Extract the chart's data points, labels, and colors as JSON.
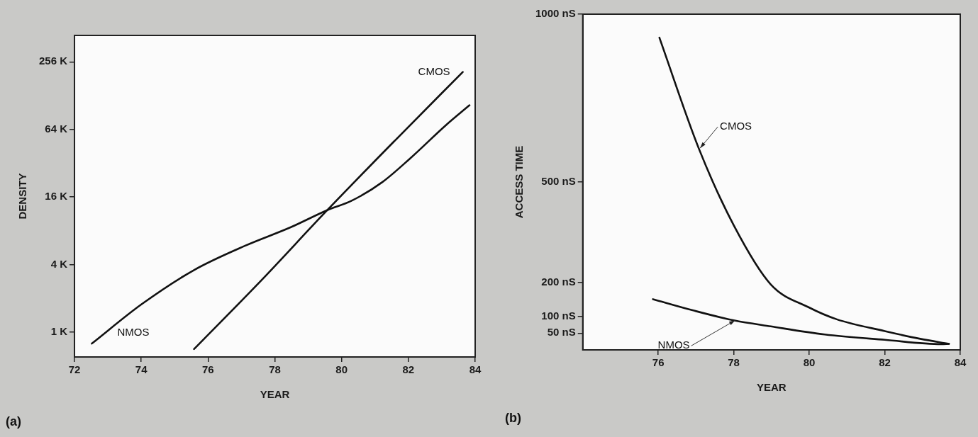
{
  "chart_data": [
    {
      "type": "line",
      "xlabel": "YEAR",
      "ylabel": "DENSITY",
      "log": "y",
      "xlim": [
        72,
        84
      ],
      "xticks": [
        72,
        74,
        76,
        78,
        80,
        82,
        84
      ],
      "ylim": [
        0.6,
        440
      ],
      "yticks": [
        {
          "value": 1,
          "label": "1 K"
        },
        {
          "value": 4,
          "label": "4 K"
        },
        {
          "value": 16,
          "label": "16 K"
        },
        {
          "value": 64,
          "label": "64 K"
        },
        {
          "value": 256,
          "label": "256 K"
        }
      ],
      "grid": false,
      "legend": false,
      "marker": "none",
      "line_style": "solid",
      "annotations": [
        "(a)"
      ],
      "series": [
        {
          "name": "CMOS",
          "color": "#111111",
          "x": [
            75.58,
            77.6,
            79.57,
            81.6,
            83.63
          ],
          "values": [
            0.705,
            2.9,
            12.2,
            51,
            208
          ]
        },
        {
          "name": "NMOS",
          "color": "#111111",
          "x": [
            72.52,
            74.01,
            75.58,
            77.1,
            78.48,
            79.57,
            80.3,
            81.22,
            82.04,
            83.13,
            83.83
          ],
          "values": [
            0.79,
            1.77,
            3.57,
            5.86,
            8.6,
            12.2,
            14.8,
            21.7,
            35,
            70,
            105
          ]
        }
      ]
    },
    {
      "type": "line",
      "xlabel": "YEAR",
      "ylabel": "ACCESS TIME",
      "xlim": [
        74,
        84
      ],
      "xticks": [
        76,
        78,
        80,
        82,
        84
      ],
      "ylim": [
        0,
        1000
      ],
      "yticks": [
        {
          "value": 50,
          "label": "50 nS"
        },
        {
          "value": 100,
          "label": "100 nS"
        },
        {
          "value": 200,
          "label": "200 nS"
        },
        {
          "value": 500,
          "label": "500 nS"
        },
        {
          "value": 1000,
          "label": "1000 nS"
        }
      ],
      "grid": false,
      "legend": false,
      "marker": "none",
      "line_style": "solid",
      "annotations": [
        "(b)"
      ],
      "series": [
        {
          "name": "CMOS",
          "color": "#111111",
          "x": [
            76.03,
            77.07,
            78.0,
            78.98,
            80.0,
            80.73,
            82.0,
            82.94,
            83.7
          ],
          "values": [
            930,
            601,
            371,
            195,
            126,
            91,
            56,
            33,
            18
          ]
        },
        {
          "name": "NMOS",
          "color": "#111111",
          "x": [
            75.86,
            76.91,
            78.0,
            78.98,
            80.41,
            82.0,
            83.5,
            83.7
          ],
          "values": [
            151,
            118,
            88,
            70,
            46,
            30,
            17,
            18
          ]
        }
      ]
    }
  ]
}
